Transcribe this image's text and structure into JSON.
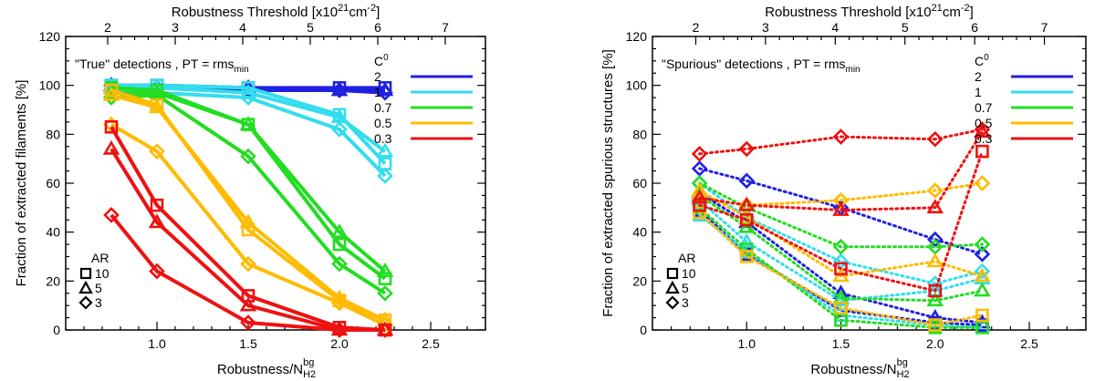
{
  "chart_data": [
    {
      "type": "line",
      "panel": "left",
      "title": "\"True\" detections , PT = rms",
      "title_sub": "min",
      "xlabel": "Robustness/N",
      "xlabel_sub": "H2",
      "xlabel_sup": "bg",
      "ylabel": "Fraction of extracted filaments [%]",
      "top_axis_label": "Robustness Threshold [x10",
      "top_axis_sup1": "21",
      "top_axis_mid": "cm",
      "top_axis_sup2": "-2",
      "top_axis_end": "]",
      "xlim": [
        0.5,
        2.8
      ],
      "ylim": [
        0,
        120
      ],
      "xticks": [
        "1.0",
        "1.5",
        "2.0",
        "2.5"
      ],
      "yticks": [
        "0",
        "20",
        "40",
        "60",
        "80",
        "100",
        "120"
      ],
      "top_ticks": [
        {
          "label": "2",
          "x": 0.73
        },
        {
          "label": "3",
          "x": 1.1
        },
        {
          "label": "4",
          "x": 1.47
        },
        {
          "label": "5",
          "x": 1.84
        },
        {
          "label": "6",
          "x": 2.21
        },
        {
          "label": "7",
          "x": 2.58
        }
      ],
      "line_style": "solid",
      "legend_title": "C",
      "legend_title_sup": "0",
      "ar_title": "AR",
      "x": [
        0.75,
        1.0,
        1.5,
        2.0,
        2.25
      ],
      "series": [
        {
          "name": "2",
          "color": "#2020e0",
          "ar": "10",
          "marker": "square",
          "values": [
            100,
            100,
            99,
            99,
            99
          ]
        },
        {
          "name": "2",
          "color": "#2020e0",
          "ar": "5",
          "marker": "triangle",
          "values": [
            100,
            99,
            99,
            98,
            98
          ]
        },
        {
          "name": "2",
          "color": "#2020e0",
          "ar": "3",
          "marker": "diamond",
          "values": [
            100,
            99,
            98,
            98,
            97
          ]
        },
        {
          "name": "1",
          "color": "#33ddee",
          "ar": "10",
          "marker": "square",
          "values": [
            100,
            100,
            99,
            88,
            68
          ]
        },
        {
          "name": "1",
          "color": "#33ddee",
          "ar": "5",
          "marker": "triangle",
          "values": [
            99,
            99,
            97,
            87,
            73
          ]
        },
        {
          "name": "1",
          "color": "#33ddee",
          "ar": "3",
          "marker": "diamond",
          "values": [
            98,
            97,
            95,
            82,
            63
          ]
        },
        {
          "name": "0.7",
          "color": "#22dd22",
          "ar": "10",
          "marker": "square",
          "values": [
            99,
            98,
            84,
            35,
            21
          ]
        },
        {
          "name": "0.7",
          "color": "#22dd22",
          "ar": "5",
          "marker": "triangle",
          "values": [
            97,
            97,
            84,
            40,
            24
          ]
        },
        {
          "name": "0.7",
          "color": "#22dd22",
          "ar": "3",
          "marker": "diamond",
          "values": [
            95,
            96,
            71,
            27,
            15
          ]
        },
        {
          "name": "0.5",
          "color": "#ffbb00",
          "ar": "10",
          "marker": "square",
          "values": [
            98,
            92,
            41,
            12,
            4
          ]
        },
        {
          "name": "0.5",
          "color": "#ffbb00",
          "ar": "5",
          "marker": "triangle",
          "values": [
            96,
            91,
            44,
            13,
            4
          ]
        },
        {
          "name": "0.5",
          "color": "#ffbb00",
          "ar": "3",
          "marker": "diamond",
          "values": [
            84,
            73,
            27,
            11,
            2
          ]
        },
        {
          "name": "0.3",
          "color": "#ee1111",
          "ar": "10",
          "marker": "square",
          "values": [
            83,
            51,
            14,
            1,
            0
          ]
        },
        {
          "name": "0.3",
          "color": "#ee1111",
          "ar": "5",
          "marker": "triangle",
          "values": [
            74,
            44,
            10,
            0,
            0
          ]
        },
        {
          "name": "0.3",
          "color": "#ee1111",
          "ar": "3",
          "marker": "diamond",
          "values": [
            47,
            24,
            3,
            0,
            0
          ]
        }
      ]
    },
    {
      "type": "line",
      "panel": "right",
      "title": "\"Spurious\" detections , PT = rms",
      "title_sub": "min",
      "xlabel": "Robustness/N",
      "xlabel_sub": "H2",
      "xlabel_sup": "bg",
      "ylabel": "Fraction of extracted spurious structures [%]",
      "top_axis_label": "Robustness Threshold [x10",
      "top_axis_sup1": "21",
      "top_axis_mid": "cm",
      "top_axis_sup2": "-2",
      "top_axis_end": "]",
      "xlim": [
        0.5,
        2.8
      ],
      "ylim": [
        0,
        120
      ],
      "xticks": [
        "1.0",
        "1.5",
        "2.0",
        "2.5"
      ],
      "yticks": [
        "0",
        "20",
        "40",
        "60",
        "80",
        "100",
        "120"
      ],
      "top_ticks": [
        {
          "label": "2",
          "x": 0.73
        },
        {
          "label": "3",
          "x": 1.1
        },
        {
          "label": "4",
          "x": 1.47
        },
        {
          "label": "5",
          "x": 1.84
        },
        {
          "label": "6",
          "x": 2.21
        },
        {
          "label": "7",
          "x": 2.58
        }
      ],
      "line_style": "dotted",
      "legend_title": "C",
      "legend_title_sup": "0",
      "ar_title": "AR",
      "x": [
        0.75,
        1.0,
        1.5,
        2.0,
        2.25
      ],
      "series": [
        {
          "name": "2",
          "color": "#2020e0",
          "ar": "10",
          "marker": "square",
          "values": [
            49,
            31,
            8,
            3,
            2
          ]
        },
        {
          "name": "2",
          "color": "#2020e0",
          "ar": "5",
          "marker": "triangle",
          "values": [
            56,
            44,
            15,
            5,
            3
          ]
        },
        {
          "name": "2",
          "color": "#2020e0",
          "ar": "3",
          "marker": "diamond",
          "values": [
            66,
            61,
            50,
            37,
            31
          ]
        },
        {
          "name": "1",
          "color": "#33ddee",
          "ar": "10",
          "marker": "square",
          "values": [
            47,
            32,
            6,
            2,
            1
          ]
        },
        {
          "name": "1",
          "color": "#33ddee",
          "ar": "5",
          "marker": "triangle",
          "values": [
            53,
            36,
            12,
            16,
            21
          ]
        },
        {
          "name": "1",
          "color": "#33ddee",
          "ar": "3",
          "marker": "diamond",
          "values": [
            60,
            46,
            28,
            19,
            24
          ]
        },
        {
          "name": "0.7",
          "color": "#22dd22",
          "ar": "10",
          "marker": "square",
          "values": [
            50,
            33,
            4,
            1,
            1
          ]
        },
        {
          "name": "0.7",
          "color": "#22dd22",
          "ar": "5",
          "marker": "triangle",
          "values": [
            55,
            42,
            13,
            12,
            16
          ]
        },
        {
          "name": "0.7",
          "color": "#22dd22",
          "ar": "3",
          "marker": "diamond",
          "values": [
            60,
            50,
            34,
            34,
            35
          ]
        },
        {
          "name": "0.5",
          "color": "#ffbb00",
          "ar": "10",
          "marker": "square",
          "values": [
            48,
            30,
            9,
            2,
            6
          ]
        },
        {
          "name": "0.5",
          "color": "#ffbb00",
          "ar": "5",
          "marker": "triangle",
          "values": [
            57,
            46,
            22,
            28,
            22
          ]
        },
        {
          "name": "0.5",
          "color": "#ffbb00",
          "ar": "3",
          "marker": "diamond",
          "values": [
            54,
            51,
            53,
            57,
            60
          ]
        },
        {
          "name": "0.3",
          "color": "#ee1111",
          "ar": "10",
          "marker": "square",
          "values": [
            51,
            45,
            25,
            16,
            73
          ]
        },
        {
          "name": "0.3",
          "color": "#ee1111",
          "ar": "5",
          "marker": "triangle",
          "values": [
            54,
            51,
            49,
            50,
            81
          ]
        },
        {
          "name": "0.3",
          "color": "#ee1111",
          "ar": "3",
          "marker": "diamond",
          "values": [
            72,
            74,
            79,
            78,
            82
          ]
        }
      ]
    }
  ]
}
